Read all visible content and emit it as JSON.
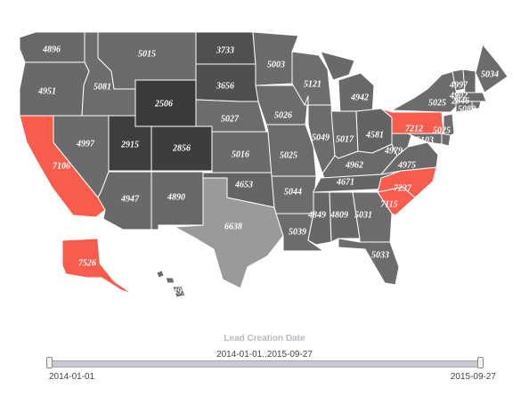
{
  "chart_data": {
    "type": "map",
    "title": "",
    "regions": [
      {
        "code": "WA",
        "value": 4896,
        "fill": "#686868"
      },
      {
        "code": "OR",
        "value": 4951,
        "fill": "#696969"
      },
      {
        "code": "CA",
        "value": 7106,
        "fill": "#f75c4c"
      },
      {
        "code": "NV",
        "value": 4997,
        "fill": "#6b6b6b"
      },
      {
        "code": "ID",
        "value": 5081,
        "fill": "#6d6d6d"
      },
      {
        "code": "MT",
        "value": 5015,
        "fill": "#6b6b6b"
      },
      {
        "code": "WY",
        "value": 2506,
        "fill": "#3a3a3a"
      },
      {
        "code": "UT",
        "value": 2915,
        "fill": "#3e3e3e"
      },
      {
        "code": "CO",
        "value": 2856,
        "fill": "#3d3d3d"
      },
      {
        "code": "AZ",
        "value": 4947,
        "fill": "#696969"
      },
      {
        "code": "NM",
        "value": 4890,
        "fill": "#686868"
      },
      {
        "code": "ND",
        "value": 3733,
        "fill": "#505050"
      },
      {
        "code": "SD",
        "value": 3656,
        "fill": "#4f4f4f"
      },
      {
        "code": "NE",
        "value": 5027,
        "fill": "#6c6c6c"
      },
      {
        "code": "KS",
        "value": 5016,
        "fill": "#6b6b6b"
      },
      {
        "code": "OK",
        "value": 4653,
        "fill": "#646464"
      },
      {
        "code": "TX",
        "value": 6638,
        "fill": "#9a9a9a"
      },
      {
        "code": "MN",
        "value": 5003,
        "fill": "#6b6b6b"
      },
      {
        "code": "IA",
        "value": 5026,
        "fill": "#6c6c6c"
      },
      {
        "code": "MO",
        "value": 5025,
        "fill": "#6c6c6c"
      },
      {
        "code": "AR",
        "value": 5044,
        "fill": "#6c6c6c"
      },
      {
        "code": "LA",
        "value": 5039,
        "fill": "#6c6c6c"
      },
      {
        "code": "WI",
        "value": 5121,
        "fill": "#6e6e6e"
      },
      {
        "code": "IL",
        "value": 5049,
        "fill": "#6c6c6c"
      },
      {
        "code": "MI",
        "value": 4942,
        "fill": "#696969"
      },
      {
        "code": "IN",
        "value": 5017,
        "fill": "#6b6b6b"
      },
      {
        "code": "OH",
        "value": 4581,
        "fill": "#636363"
      },
      {
        "code": "KY",
        "value": 4962,
        "fill": "#6a6a6a"
      },
      {
        "code": "TN",
        "value": 4671,
        "fill": "#656565"
      },
      {
        "code": "MS",
        "value": 4849,
        "fill": "#676767"
      },
      {
        "code": "AL",
        "value": 4809,
        "fill": "#676767"
      },
      {
        "code": "GA",
        "value": 5031,
        "fill": "#6c6c6c"
      },
      {
        "code": "FL",
        "value": 5033,
        "fill": "#6c6c6c"
      },
      {
        "code": "SC",
        "value": 7115,
        "fill": "#f75c4c"
      },
      {
        "code": "NC",
        "value": 7237,
        "fill": "#f75c4c"
      },
      {
        "code": "VA",
        "value": 4975,
        "fill": "#6a6a6a"
      },
      {
        "code": "WV",
        "value": 4979,
        "fill": "#6a6a6a"
      },
      {
        "code": "PA",
        "value": 7212,
        "fill": "#f75c4c"
      },
      {
        "code": "NY",
        "value": 5025,
        "fill": "#6c6c6c"
      },
      {
        "code": "ME",
        "value": 5034,
        "fill": "#6c6c6c"
      },
      {
        "code": "VT",
        "value": 4997,
        "fill": "#6b6b6b"
      },
      {
        "code": "NH",
        "value": 4902,
        "fill": "#686868"
      },
      {
        "code": "MA",
        "value": 2846,
        "fill": "#6b6b6b"
      },
      {
        "code": "RI",
        "value": 5080,
        "fill": "#6d6d6d"
      },
      {
        "code": "CT",
        "value": 4951,
        "fill": "#696969"
      },
      {
        "code": "NJ",
        "value": 5103,
        "fill": "#6e6e6e"
      },
      {
        "code": "DE",
        "value": 5025,
        "fill": "#6c6c6c"
      },
      {
        "code": "MD",
        "value": 5025,
        "fill": "#6c6c6c"
      },
      {
        "code": "AK",
        "value": 7526,
        "fill": "#f75c4c"
      },
      {
        "code": "HI",
        "value": 4998,
        "fill": "#6b6b6b"
      }
    ]
  },
  "slider": {
    "title": "Lead Creation Date",
    "range_label": "2014-01-01..2015-09-27",
    "start_label": "2014-01-01",
    "end_label": "2015-09-27"
  }
}
